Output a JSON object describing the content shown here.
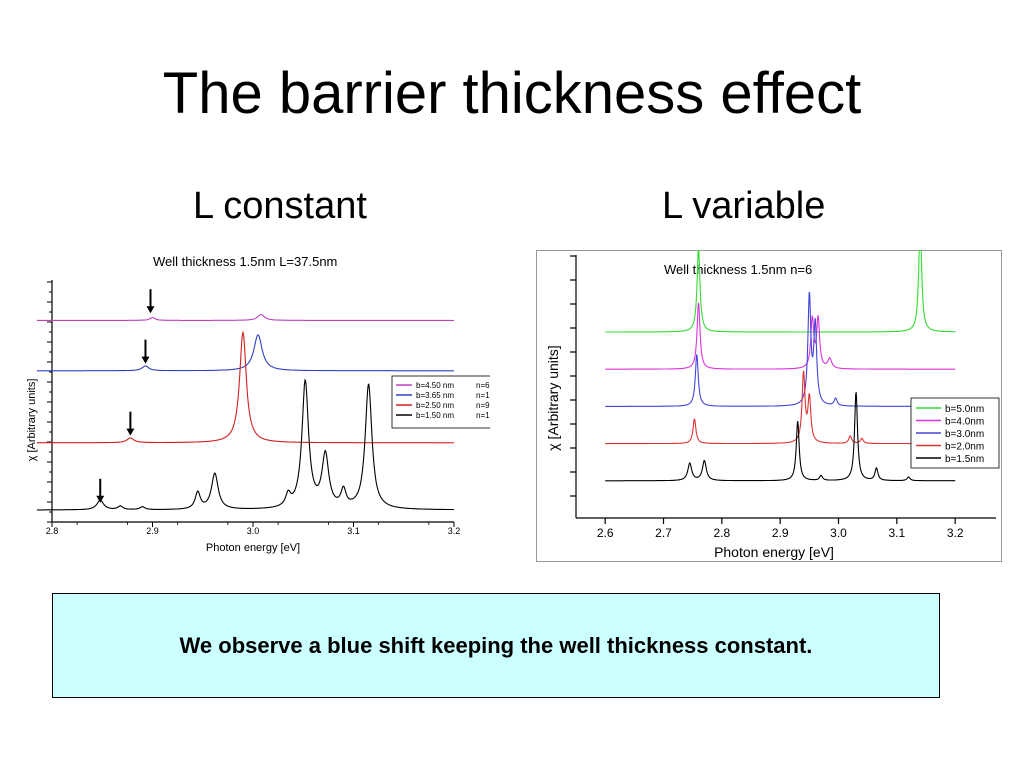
{
  "slide": {
    "title": "The barrier thickness effect",
    "left_heading": "L constant",
    "right_heading": "L variable",
    "note": "We observe a blue shift keeping the well thickness constant."
  },
  "chart_data": [
    {
      "type": "line",
      "title": "Well thickness 1.5nm L=37.5nm",
      "xlabel": "Photon energy [eV]",
      "ylabel": "χ  [Arbitrary units]",
      "xlim": [
        2.8,
        3.2
      ],
      "xticks": [
        "2.8",
        "2.9",
        "3.0",
        "3.1",
        "3.2"
      ],
      "legend_position": "right",
      "baselines": [
        0.05,
        0.33,
        0.63,
        0.84
      ],
      "arrows": [
        2.848,
        2.878,
        2.893,
        2.898
      ],
      "series": [
        {
          "name": "b=4.50 nm",
          "n_label": "n=6",
          "color": "#c040c0",
          "baseline": 0.84,
          "peaks": [
            [
              2.9,
              0.012,
              0.003
            ],
            [
              3.008,
              0.025,
              0.004
            ]
          ]
        },
        {
          "name": "b=3.65 nm",
          "n_label": "n=12",
          "color": "#3040c0",
          "baseline": 0.63,
          "peaks": [
            [
              2.893,
              0.02,
              0.004
            ],
            [
              3.005,
              0.15,
              0.005
            ]
          ]
        },
        {
          "name": "b=2.50 nm",
          "n_label": "n=9",
          "color": "#d02020",
          "baseline": 0.33,
          "peaks": [
            [
              2.878,
              0.02,
              0.004
            ],
            [
              2.99,
              0.46,
              0.004
            ]
          ]
        },
        {
          "name": "b=1.50 nm",
          "n_label": "n=12",
          "color": "#000000",
          "baseline": 0.05,
          "peaks": [
            [
              2.848,
              0.04,
              0.004
            ],
            [
              2.868,
              0.015,
              0.003
            ],
            [
              2.89,
              0.012,
              0.003
            ],
            [
              2.945,
              0.07,
              0.003
            ],
            [
              2.962,
              0.15,
              0.004
            ],
            [
              3.035,
              0.05,
              0.003
            ],
            [
              3.052,
              0.53,
              0.004
            ],
            [
              3.072,
              0.22,
              0.004
            ],
            [
              3.09,
              0.07,
              0.003
            ],
            [
              3.115,
              0.52,
              0.004
            ]
          ]
        }
      ]
    },
    {
      "type": "line",
      "title": "Well thickness 1.5nm n=6",
      "xlabel": "Photon energy [eV]",
      "ylabel": "χ  [Arbitrary units]",
      "xlim": [
        2.55,
        3.27
      ],
      "xticks": [
        "2.6",
        "2.7",
        "2.8",
        "2.9",
        "3.0",
        "3.1",
        "3.2"
      ],
      "legend_position": "right",
      "series": [
        {
          "name": "b=5.0nm",
          "color": "#33dd33",
          "baseline": 0.75,
          "peaks": [
            [
              2.76,
              0.34,
              0.003
            ],
            [
              3.14,
              0.44,
              0.003
            ]
          ]
        },
        {
          "name": "b=4.0nm",
          "color": "#dd33dd",
          "baseline": 0.6,
          "peaks": [
            [
              2.76,
              0.27,
              0.003
            ],
            [
              2.955,
              0.2,
              0.003
            ],
            [
              2.965,
              0.2,
              0.003
            ],
            [
              2.985,
              0.04,
              0.004
            ]
          ]
        },
        {
          "name": "b=3.0nm",
          "color": "#4444dd",
          "baseline": 0.45,
          "peaks": [
            [
              2.757,
              0.21,
              0.003
            ],
            [
              2.95,
              0.44,
              0.003
            ],
            [
              2.96,
              0.32,
              0.003
            ],
            [
              2.995,
              0.03,
              0.003
            ]
          ]
        },
        {
          "name": "b=2.0nm",
          "color": "#dd3333",
          "baseline": 0.3,
          "peaks": [
            [
              2.753,
              0.1,
              0.003
            ],
            [
              2.94,
              0.28,
              0.003
            ],
            [
              2.95,
              0.18,
              0.003
            ],
            [
              3.02,
              0.03,
              0.003
            ],
            [
              3.04,
              0.02,
              0.003
            ]
          ]
        },
        {
          "name": "b=1.5nm",
          "color": "#000000",
          "baseline": 0.15,
          "peaks": [
            [
              2.745,
              0.07,
              0.004
            ],
            [
              2.77,
              0.08,
              0.004
            ],
            [
              2.93,
              0.24,
              0.003
            ],
            [
              2.97,
              0.02,
              0.003
            ],
            [
              3.03,
              0.36,
              0.003
            ],
            [
              3.065,
              0.05,
              0.003
            ],
            [
              3.12,
              0.015,
              0.003
            ]
          ]
        }
      ]
    }
  ]
}
